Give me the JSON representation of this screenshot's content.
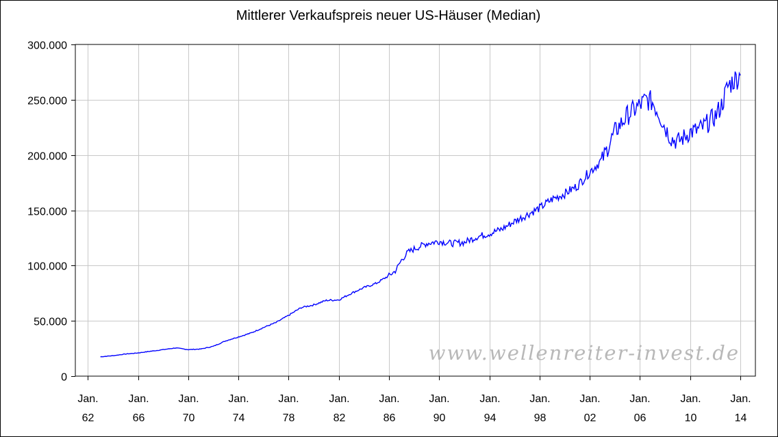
{
  "chart_data": {
    "type": "line",
    "title": "Mittlerer Verkaufspreis neuer US-Häuser (Median)",
    "watermark": "www.wellenreiter-invest.de",
    "xlabel": "",
    "ylabel": "",
    "xlim": [
      1961.0,
      2015.2
    ],
    "ylim": [
      0,
      300000
    ],
    "y_ticks": [
      0,
      50000,
      100000,
      150000,
      200000,
      250000,
      300000
    ],
    "y_tick_labels": [
      "0",
      "50.000",
      "100.000",
      "150.000",
      "200.000",
      "250.000",
      "300.000"
    ],
    "x_ticks": [
      {
        "year": 1962,
        "line1": "Jan.",
        "line2": "62"
      },
      {
        "year": 1966,
        "line1": "Jan.",
        "line2": "66"
      },
      {
        "year": 1970,
        "line1": "Jan.",
        "line2": "70"
      },
      {
        "year": 1974,
        "line1": "Jan.",
        "line2": "74"
      },
      {
        "year": 1978,
        "line1": "Jan.",
        "line2": "78"
      },
      {
        "year": 1982,
        "line1": "Jan.",
        "line2": "82"
      },
      {
        "year": 1986,
        "line1": "Jan.",
        "line2": "86"
      },
      {
        "year": 1990,
        "line1": "Jan.",
        "line2": "90"
      },
      {
        "year": 1994,
        "line1": "Jan.",
        "line2": "94"
      },
      {
        "year": 1998,
        "line1": "Jan.",
        "line2": "98"
      },
      {
        "year": 2002,
        "line1": "Jan.",
        "line2": "02"
      },
      {
        "year": 2006,
        "line1": "Jan.",
        "line2": "06"
      },
      {
        "year": 2010,
        "line1": "Jan.",
        "line2": "10"
      },
      {
        "year": 2014,
        "line1": "Jan.",
        "line2": "14"
      }
    ],
    "grid": true,
    "line_color": "#0000ff",
    "series": [
      {
        "x": [
          1963.0,
          1964.0,
          1965.0,
          1966.0,
          1967.0,
          1968.0,
          1969.0,
          1970.0,
          1971.0,
          1972.0,
          1973.0,
          1974.0,
          1975.0,
          1976.0,
          1977.0,
          1978.0,
          1979.0,
          1980.0,
          1981.0,
          1982.0,
          1983.0,
          1984.0,
          1985.0,
          1986.0,
          1986.5,
          1987.0,
          1987.5,
          1988.0,
          1989.0,
          1990.0,
          1991.0,
          1992.0,
          1993.0,
          1994.0,
          1995.0,
          1996.0,
          1997.0,
          1998.0,
          1999.0,
          2000.0,
          2001.0,
          2002.0,
          2003.0,
          2004.0,
          2005.0,
          2006.0,
          2006.5,
          2007.0,
          2007.5,
          2008.0,
          2008.5,
          2009.0,
          2009.5,
          2010.0,
          2010.5,
          2011.0,
          2011.5,
          2012.0,
          2012.5,
          2013.0,
          2013.5,
          2014.0
        ],
        "y": [
          17500,
          18500,
          20000,
          21000,
          22500,
          24000,
          25500,
          24000,
          24500,
          27000,
          32000,
          35500,
          39000,
          44000,
          48500,
          55000,
          62000,
          64500,
          68500,
          69000,
          75000,
          80000,
          84000,
          91000,
          95000,
          105000,
          112000,
          115000,
          120000,
          122000,
          120000,
          121000,
          126000,
          129000,
          133000,
          140000,
          146000,
          152000,
          160000,
          165000,
          172000,
          185000,
          196000,
          221000,
          236000,
          245000,
          250000,
          248000,
          238000,
          225000,
          215000,
          212000,
          216000,
          221000,
          222000,
          225000,
          230000,
          235000,
          245000,
          262000,
          268000,
          272000
        ]
      }
    ]
  }
}
